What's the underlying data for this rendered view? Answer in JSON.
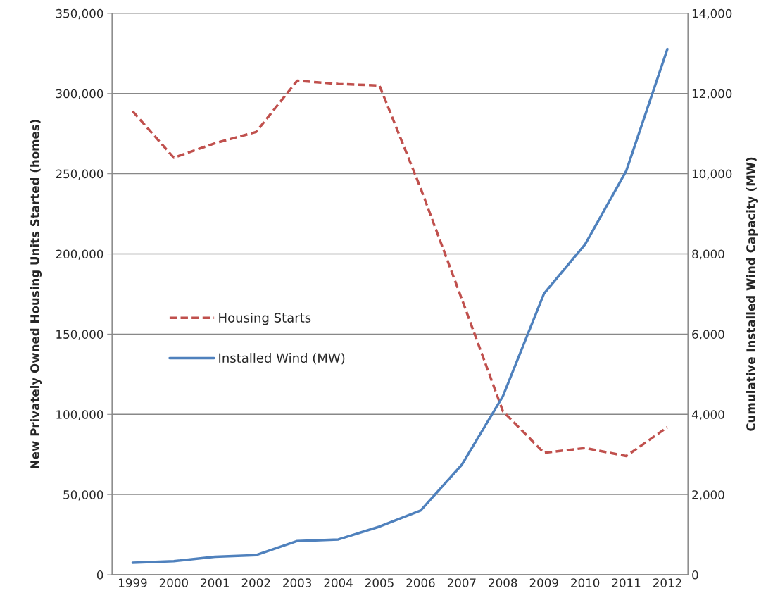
{
  "chart_data": {
    "type": "line",
    "categories": [
      "1999",
      "2000",
      "2001",
      "2002",
      "2003",
      "2004",
      "2005",
      "2006",
      "2007",
      "2008",
      "2009",
      "2010",
      "2011",
      "2012"
    ],
    "ylabel": "New Privately Owned Housing Units Started (homes)",
    "y2label": "Cumulative Installed Wind Capacity (MW)",
    "ylim": [
      0,
      350000
    ],
    "yticks": [
      {
        "value": 0,
        "label": "0"
      },
      {
        "value": 50000,
        "label": "50,000"
      },
      {
        "value": 100000,
        "label": "100,000"
      },
      {
        "value": 150000,
        "label": "150,000"
      },
      {
        "value": 200000,
        "label": "200,000"
      },
      {
        "value": 250000,
        "label": "250,000"
      },
      {
        "value": 300000,
        "label": "300,000"
      },
      {
        "value": 350000,
        "label": "350,000"
      }
    ],
    "y2lim": [
      0,
      14000
    ],
    "y2ticks": [
      {
        "value": 0,
        "label": "0"
      },
      {
        "value": 2000,
        "label": "2,000"
      },
      {
        "value": 4000,
        "label": "4,000"
      },
      {
        "value": 6000,
        "label": "6,000"
      },
      {
        "value": 8000,
        "label": "8,000"
      },
      {
        "value": 10000,
        "label": "10,000"
      },
      {
        "value": 12000,
        "label": "12,000"
      },
      {
        "value": 14000,
        "label": "14,000"
      }
    ],
    "grid": "y",
    "legend": "left",
    "series": [
      {
        "name": "Housing Starts",
        "color": "#c0504d",
        "line_style": "dashed",
        "values": [
          289000,
          260000,
          269000,
          276000,
          308000,
          306000,
          305000,
          241000,
          172000,
          102000,
          76000,
          79000,
          74000,
          92000
        ]
      },
      {
        "name": "Installed Wind (MW)",
        "color": "#4f81bd",
        "line_style": "solid",
        "axis": "y2",
        "values": [
          300,
          340,
          450,
          490,
          840,
          880,
          1200,
          1600,
          2740,
          4450,
          7010,
          8240,
          10070,
          13110
        ]
      }
    ]
  }
}
